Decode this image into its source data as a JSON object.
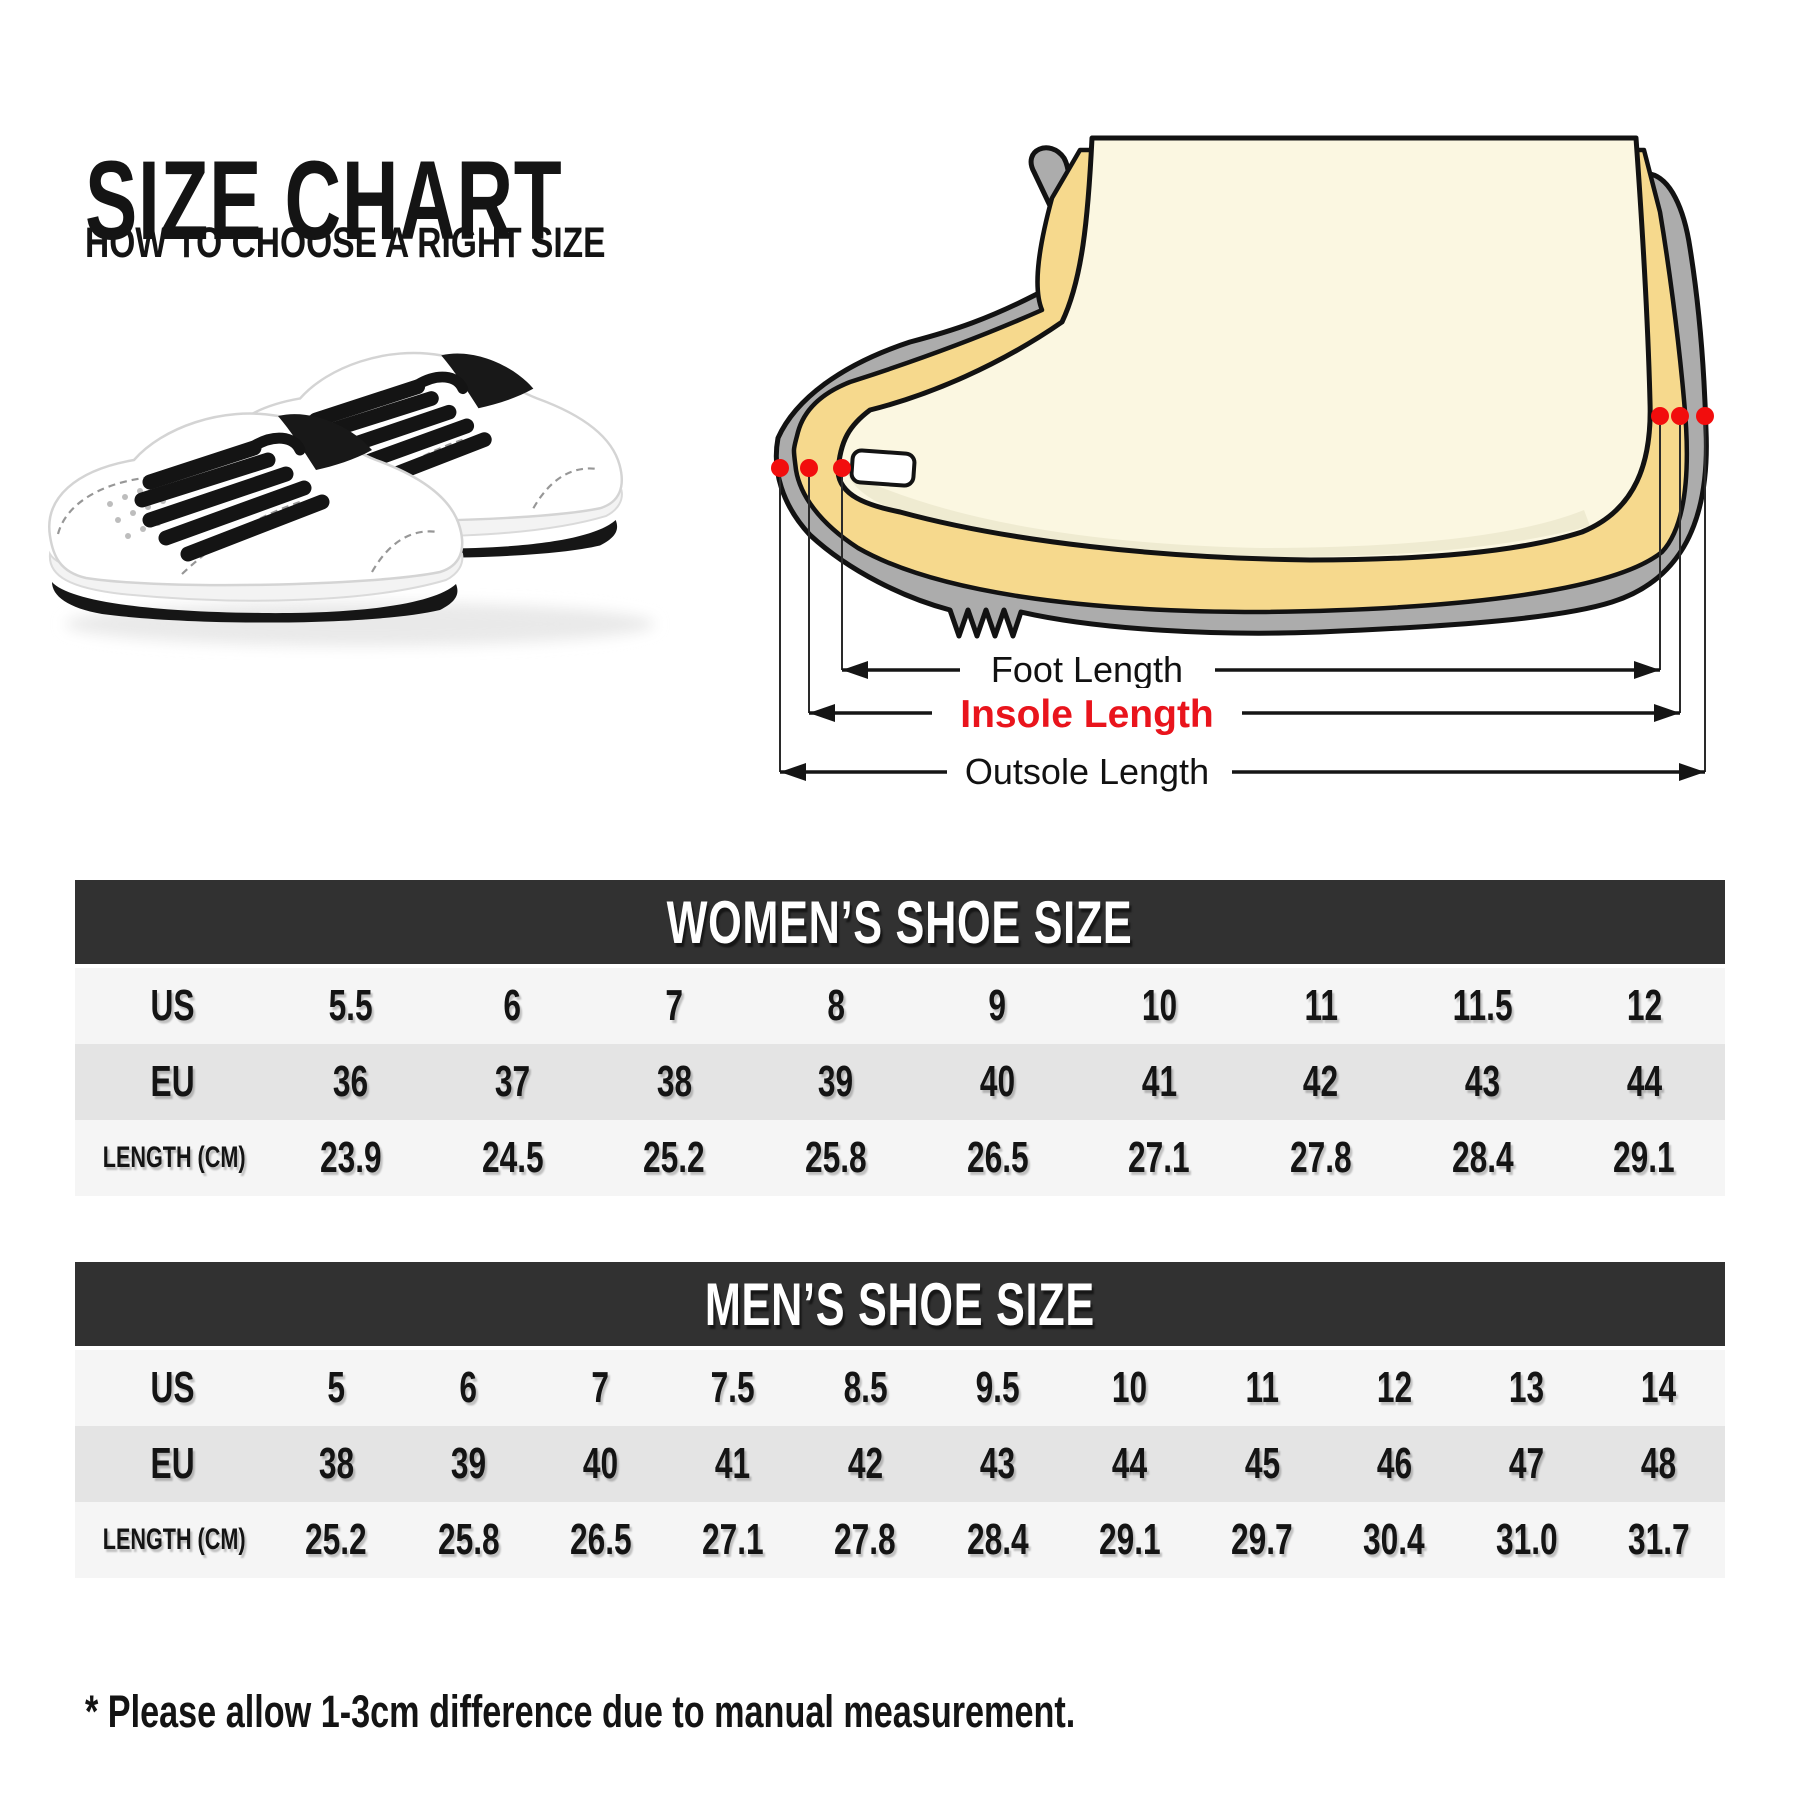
{
  "header": {
    "title": "SIZE CHART",
    "subtitle": "HOW TO CHOOSE A RIGHT SIZE"
  },
  "diagram": {
    "labels": {
      "foot": "Foot Length",
      "insole": "Insole Length",
      "outsole": "Outsole Length"
    },
    "colors": {
      "shoe_gray": "#ACACAC",
      "insole_yellow": "#F6D98D",
      "foot_cream": "#FBF7E1",
      "foot_shade": "#EFEBD1",
      "outline_black": "#121212",
      "marker_red": "#F20D0D",
      "insole_label_red": "#E9141C"
    }
  },
  "tables_style": {
    "header_bg": "#313131",
    "header_text": "#FFFFFF",
    "row_light": "#F5F5F5",
    "row_dark": "#E4E4E4"
  },
  "chart_data": [
    {
      "type": "table",
      "title": "WOMEN’S SHOE SIZE",
      "rows": [
        {
          "label": "US",
          "values": [
            "5.5",
            "6",
            "7",
            "8",
            "9",
            "10",
            "11",
            "11.5",
            "12"
          ]
        },
        {
          "label": "EU",
          "values": [
            "36",
            "37",
            "38",
            "39",
            "40",
            "41",
            "42",
            "43",
            "44"
          ]
        },
        {
          "label": "LENGTH (CM)",
          "values": [
            "23.9",
            "24.5",
            "25.2",
            "25.8",
            "26.5",
            "27.1",
            "27.8",
            "28.4",
            "29.1"
          ]
        }
      ]
    },
    {
      "type": "table",
      "title": "MEN’S SHOE SIZE",
      "rows": [
        {
          "label": "US",
          "values": [
            "5",
            "6",
            "7",
            "7.5",
            "8.5",
            "9.5",
            "10",
            "11",
            "12",
            "13",
            "14"
          ]
        },
        {
          "label": "EU",
          "values": [
            "38",
            "39",
            "40",
            "41",
            "42",
            "43",
            "44",
            "45",
            "46",
            "47",
            "48"
          ]
        },
        {
          "label": "LENGTH (CM)",
          "values": [
            "25.2",
            "25.8",
            "26.5",
            "27.1",
            "27.8",
            "28.4",
            "29.1",
            "29.7",
            "30.4",
            "31.0",
            "31.7"
          ]
        }
      ]
    }
  ],
  "footer": {
    "note": "* Please allow 1-3cm difference due to manual measurement."
  }
}
